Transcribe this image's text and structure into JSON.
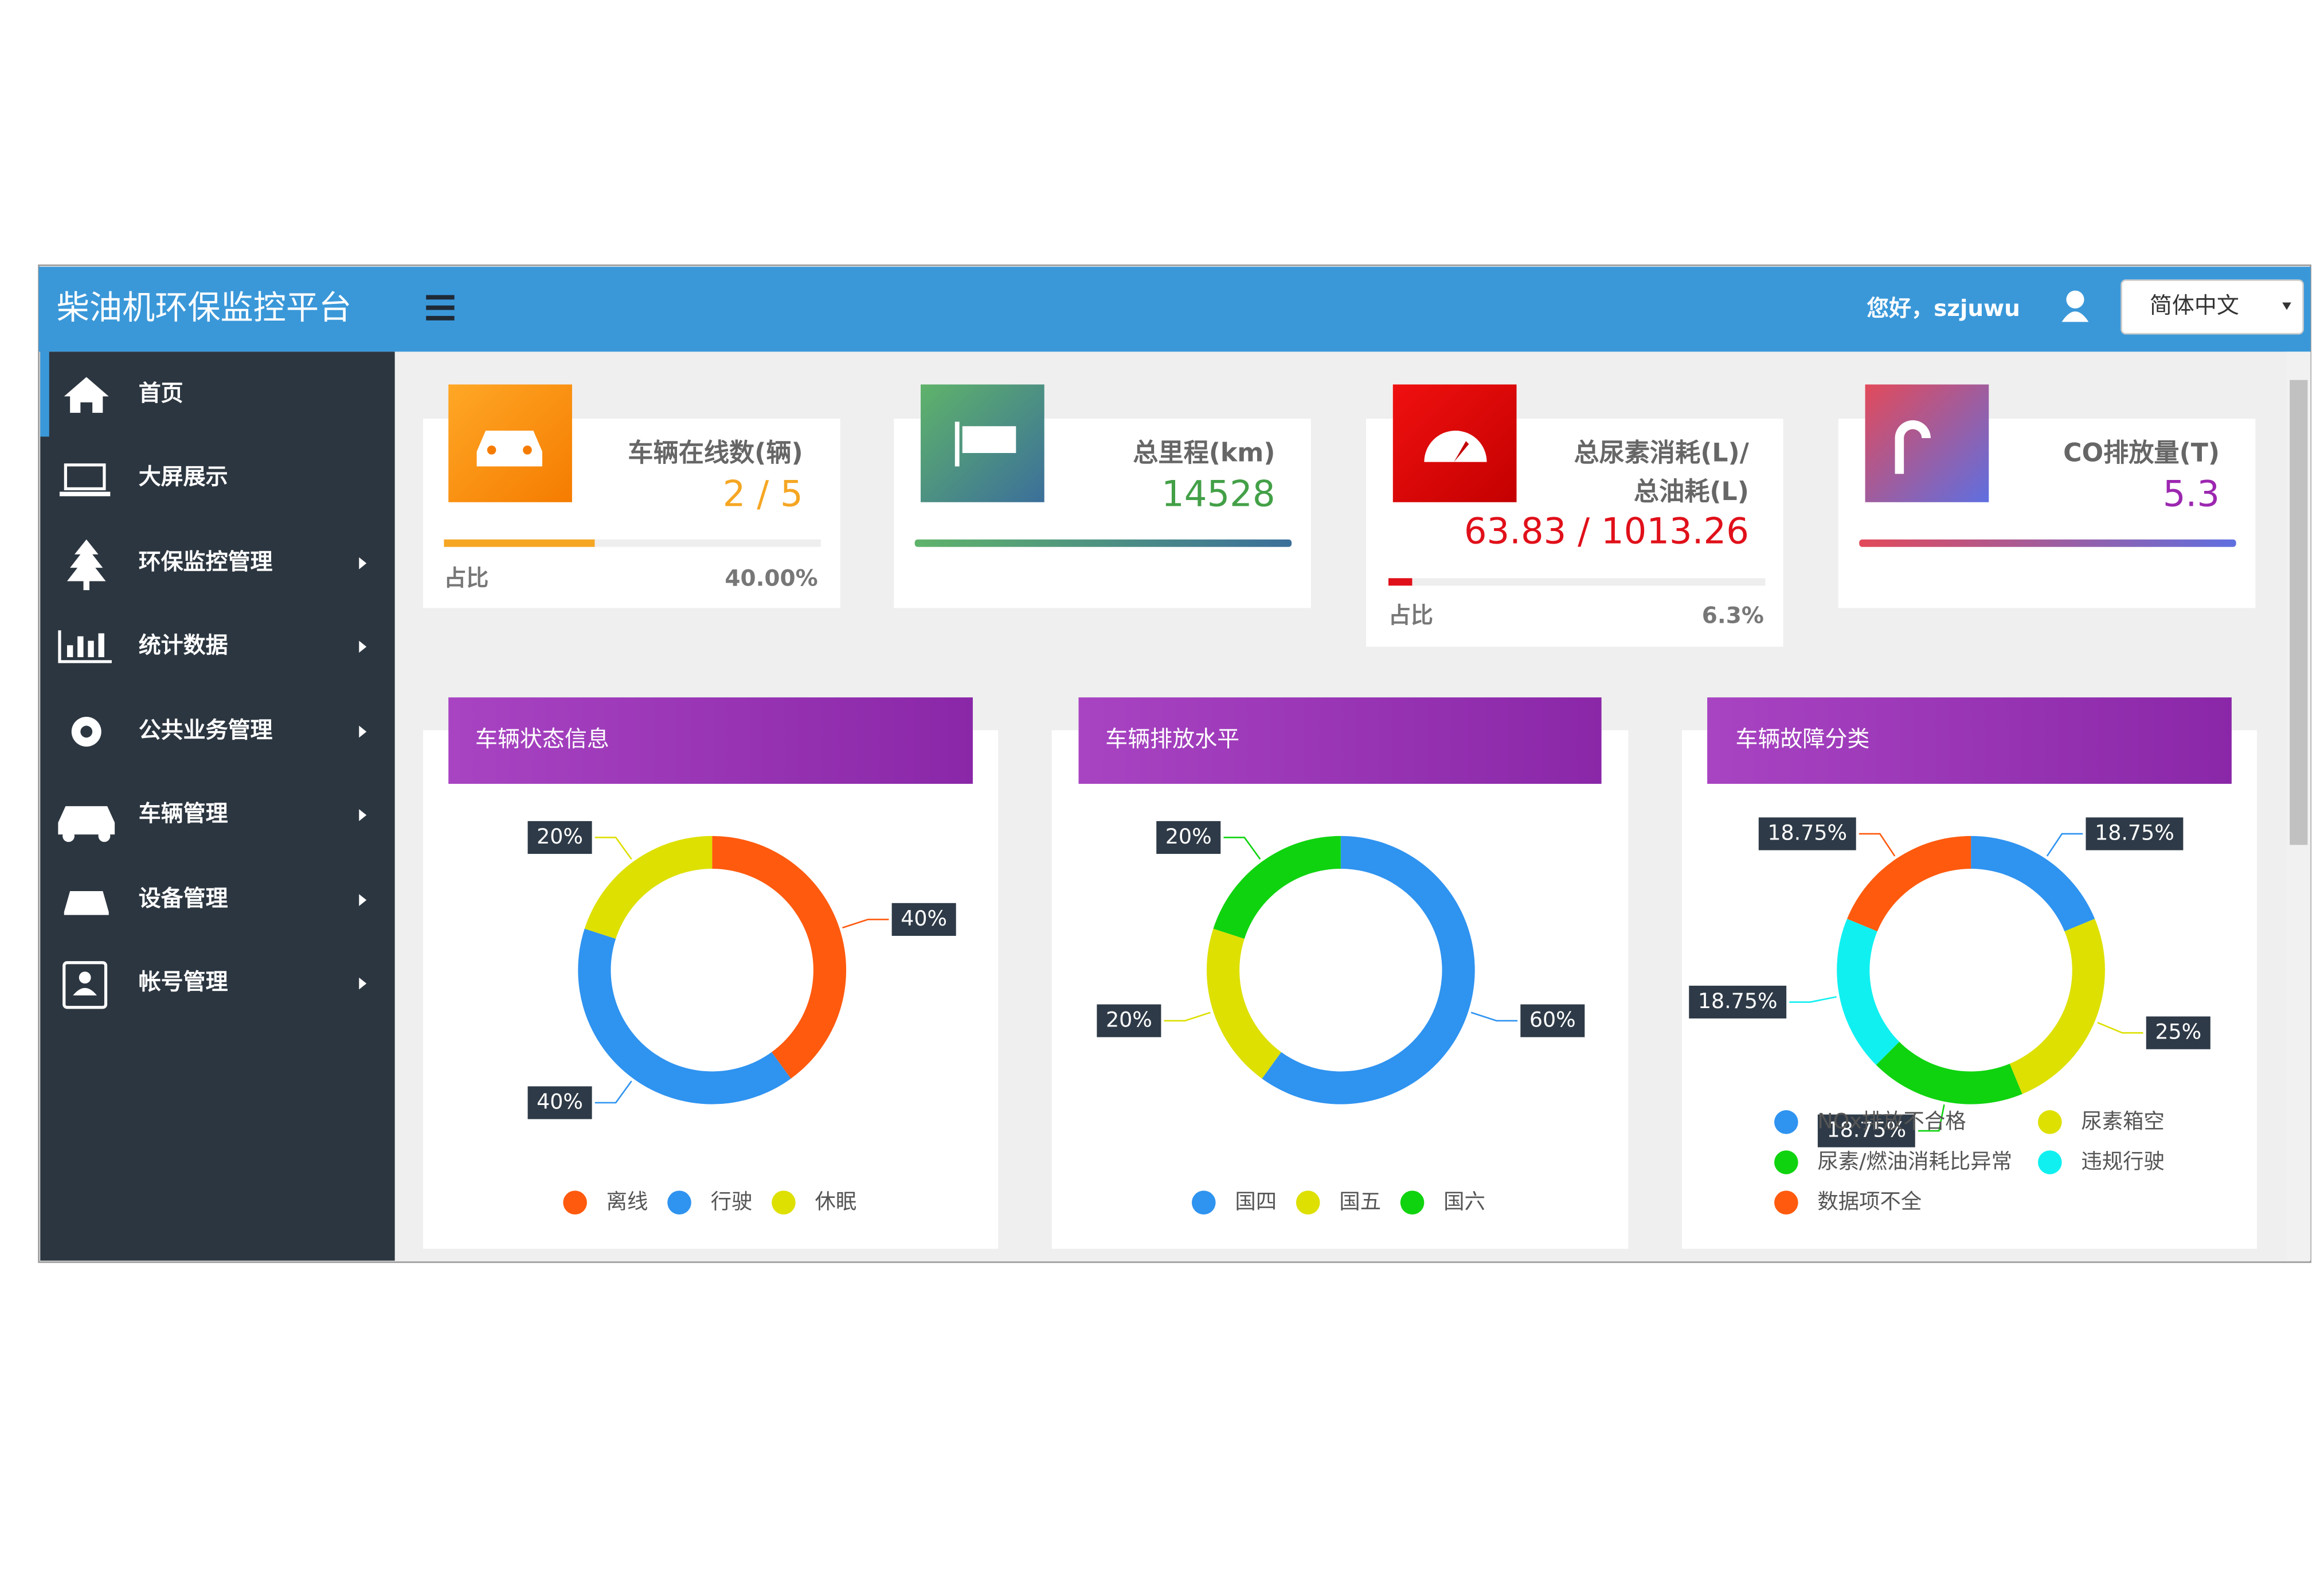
{
  "header": {
    "title": "柴油机环保监控平台",
    "greeting": "您好，szjuwu",
    "language": "简体中文"
  },
  "sidebar": {
    "items": [
      {
        "label": "首页"
      },
      {
        "label": "大屏展示"
      },
      {
        "label": "环保监控管理"
      },
      {
        "label": "统计数据"
      },
      {
        "label": "公共业务管理"
      },
      {
        "label": "车辆管理"
      },
      {
        "label": "设备管理"
      },
      {
        "label": "帐号管理"
      }
    ]
  },
  "cards": [
    {
      "title": "车辆在线数(辆)",
      "value": "2 / 5",
      "color": "#f5a623",
      "ratio_label": "占比",
      "ratio_text": "40.00%",
      "progress": 40
    },
    {
      "title": "总里程(km)",
      "value": "14528",
      "color": "#43a047"
    },
    {
      "title": "总尿素消耗(L)/",
      "title2": "总油耗(L)",
      "value": "63.83 / 1013.26",
      "color": "#e0101a",
      "ratio_label": "占比",
      "ratio_text": "6.3%",
      "progress": 6.3
    },
    {
      "title": "CO排放量(T)",
      "value": "5.3",
      "color": "#9c27b0"
    }
  ],
  "chart_data": [
    {
      "type": "pie",
      "title": "车辆状态信息",
      "categories": [
        "离线",
        "行驶",
        "休眠"
      ],
      "values": [
        40,
        40,
        20
      ],
      "value_labels": [
        "40%",
        "40%",
        "20%"
      ],
      "colors": [
        "#ff5a0e",
        "#2f93f0",
        "#dde000"
      ]
    },
    {
      "type": "pie",
      "title": "车辆排放水平",
      "categories": [
        "国四",
        "国五",
        "国六"
      ],
      "values": [
        60,
        20,
        20
      ],
      "value_labels": [
        "60%",
        "20%",
        "20%"
      ],
      "colors": [
        "#2f93f0",
        "#dde000",
        "#0fd30f"
      ]
    },
    {
      "type": "pie",
      "title": "车辆故障分类",
      "categories": [
        "NOx排放不合格",
        "尿素箱空",
        "尿素/燃油消耗比异常",
        "违规行驶",
        "数据项不全"
      ],
      "values": [
        18.75,
        25,
        18.75,
        18.75,
        18.75
      ],
      "value_labels": [
        "18.75%",
        "25%",
        "18.75%",
        "18.75%",
        "18.75%"
      ],
      "colors": [
        "#2f93f0",
        "#dde000",
        "#0fd30f",
        "#10f0f0",
        "#ff5a0e"
      ]
    }
  ]
}
